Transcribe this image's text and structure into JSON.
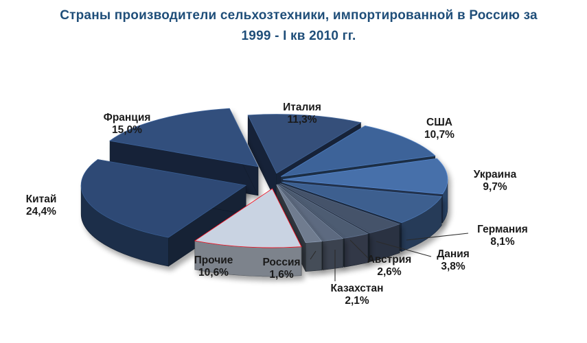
{
  "title": {
    "line1": "Страны производители сельхозтехники, импортированной в Россию за",
    "line2": "1999 - I кв 2010 гг."
  },
  "chart_data": {
    "type": "pie",
    "title": "Страны производители сельхозтехники, импортированной в Россию за 1999 - I кв 2010 гг.",
    "exploded": true,
    "three_d": true,
    "slices": [
      {
        "name": "Италия",
        "label": "11,3%",
        "value": 11.3,
        "color": "#34507a"
      },
      {
        "name": "США",
        "label": "10,7%",
        "value": 10.7,
        "color": "#3e6499"
      },
      {
        "name": "Украина",
        "label": "9,7%",
        "value": 9.7,
        "color": "#466faa"
      },
      {
        "name": "Германия",
        "label": "8,1%",
        "value": 8.1,
        "color": "#3d5f8f"
      },
      {
        "name": "Дания",
        "label": "3,8%",
        "value": 3.8,
        "color": "#44526b"
      },
      {
        "name": "Австрия",
        "label": "2,6%",
        "value": 2.6,
        "color": "#4d5b72"
      },
      {
        "name": "Казахстан",
        "label": "2,1%",
        "value": 2.1,
        "color": "#5d6b80"
      },
      {
        "name": "Россия",
        "label": "1,6%",
        "value": 1.6,
        "color": "#6f7c8f"
      },
      {
        "name": "Прочие",
        "label": "10,6%",
        "value": 10.6,
        "color": "#c9d3e2"
      },
      {
        "name": "Китай",
        "label": "24,4%",
        "value": 24.4,
        "color": "#2d4a75"
      },
      {
        "name": "Франция",
        "label": "15,0%",
        "value": 15.0,
        "color": "#314f7d"
      }
    ]
  }
}
